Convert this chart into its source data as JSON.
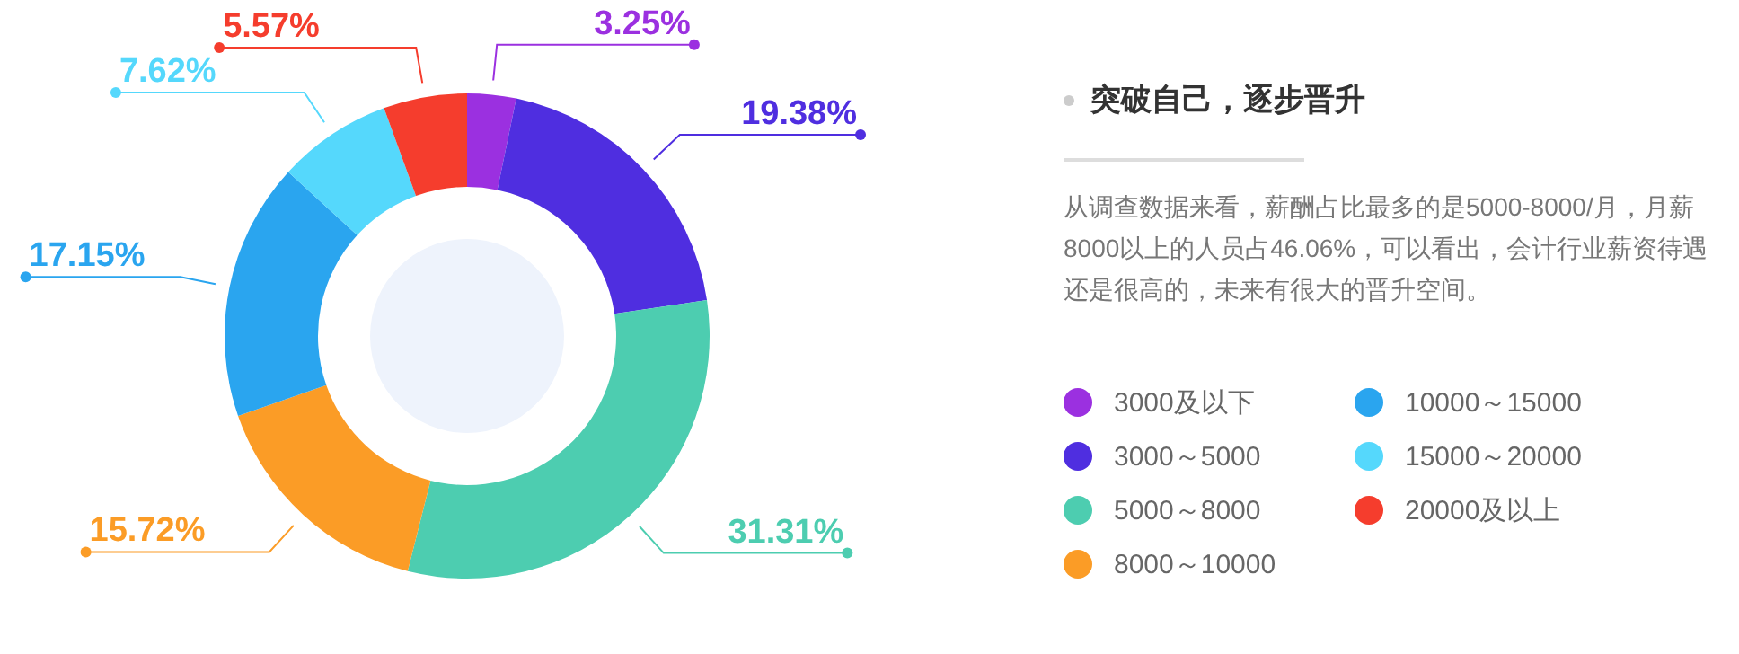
{
  "chart_data": {
    "type": "donut",
    "title": "突破自己，逐步晋升",
    "annotations": [
      "从调查数据来看，薪酬占比最多的是5000-8000/月，月薪8000以上的人员占46.06%，可以看出，会计行业薪资待遇还是很高的，未来有很大的晋升空间。"
    ],
    "categories": [
      "3000及以下",
      "3000～5000",
      "5000～8000",
      "8000～10000",
      "10000～15000",
      "15000～20000",
      "20000及以上"
    ],
    "values": [
      3.25,
      19.38,
      31.31,
      15.72,
      17.15,
      7.62,
      5.57
    ],
    "value_labels": [
      "3.25%",
      "19.38%",
      "31.31%",
      "15.72%",
      "17.15%",
      "7.62%",
      "5.57%"
    ],
    "colors": [
      "#9b30e0",
      "#4f2ee0",
      "#4dcdb0",
      "#fb9c26",
      "#2aa5ef",
      "#55d8fc",
      "#f53d2d"
    ],
    "legend": "right"
  }
}
